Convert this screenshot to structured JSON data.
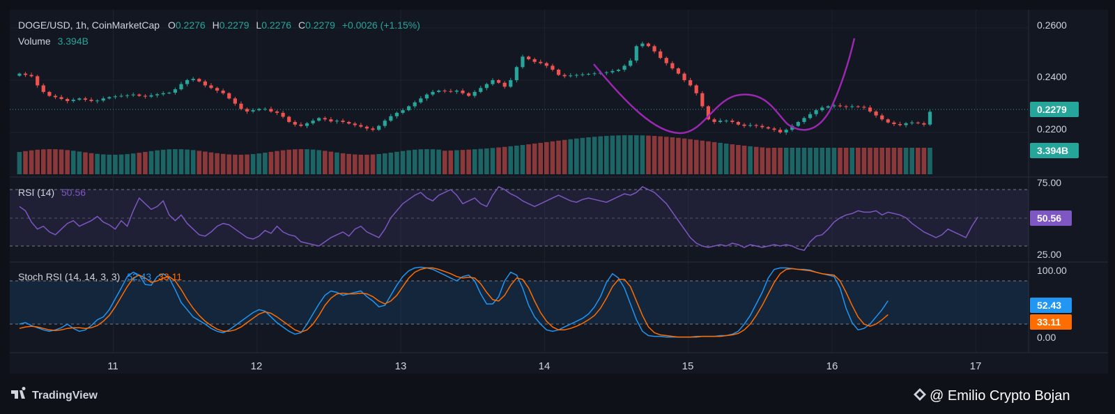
{
  "header": {
    "symbol_line": "DOGE/USD, 1h, CoinMarketCap",
    "o_label": "O",
    "o_value": "0.2276",
    "h_label": "H",
    "h_value": "0.2279",
    "l_label": "L",
    "l_value": "0.2276",
    "c_label": "C",
    "c_value": "0.2279",
    "change": "+0.0026 (+1.15%)",
    "volume_label": "Volume",
    "volume_value": "3.394B"
  },
  "badges": {
    "price": "0.2279",
    "volume": "3.394B",
    "rsi": "50.56",
    "stoch_k": "52.43",
    "stoch_d": "33.11"
  },
  "rsi_pane": {
    "label": "RSI (14)",
    "value": "50.56",
    "axis": [
      "75.00",
      "25.00"
    ]
  },
  "stoch_pane": {
    "label": "Stoch RSI (14, 14, 3, 3)",
    "k": "52.43",
    "d": "33.11",
    "axis": [
      "100.00",
      "0.00"
    ]
  },
  "price_axis": [
    "0.2600",
    "0.2400",
    "0.2200"
  ],
  "time_axis": [
    "11",
    "12",
    "13",
    "14",
    "15",
    "16",
    "17"
  ],
  "footer": {
    "brand": "TradingView",
    "watermark": "@ Emilio Crypto Bojan"
  },
  "colors": {
    "bull": "#26a69a",
    "bear": "#ef5350",
    "rsi": "#7e57c2",
    "stoch_k": "#2196f3",
    "stoch_d": "#ff6d00",
    "pattern": "#9c27b0",
    "background": "#131722"
  },
  "chart_data": [
    {
      "type": "candlestick",
      "title": "DOGE/USD, 1h, CoinMarketCap",
      "x_start_day": 10.35,
      "x_step_hours": 1,
      "ylim": [
        0.214,
        0.262
      ],
      "series": [
        {
          "name": "DOGE/USD",
          "close_approx": [
            0.2425,
            0.242,
            0.2415,
            0.238,
            0.2355,
            0.234,
            0.2335,
            0.2328,
            0.232,
            0.2325,
            0.233,
            0.2325,
            0.232,
            0.2322,
            0.233,
            0.2335,
            0.2338,
            0.234,
            0.2342,
            0.2345,
            0.234,
            0.2337,
            0.2342,
            0.2346,
            0.235,
            0.2352,
            0.2365,
            0.2385,
            0.24,
            0.2405,
            0.2395,
            0.238,
            0.237,
            0.236,
            0.235,
            0.233,
            0.231,
            0.229,
            0.228,
            0.2285,
            0.229,
            0.229,
            0.228,
            0.2275,
            0.226,
            0.224,
            0.223,
            0.2225,
            0.2235,
            0.2245,
            0.2255,
            0.225,
            0.2242,
            0.2245,
            0.224,
            0.2234,
            0.2228,
            0.2222,
            0.2215,
            0.221,
            0.2225,
            0.2245,
            0.2262,
            0.2275,
            0.2285,
            0.23,
            0.2315,
            0.233,
            0.2345,
            0.2355,
            0.236,
            0.2358,
            0.2356,
            0.236,
            0.235,
            0.234,
            0.2355,
            0.237,
            0.2385,
            0.24,
            0.239,
            0.2375,
            0.24,
            0.245,
            0.249,
            0.248,
            0.247,
            0.2465,
            0.2455,
            0.244,
            0.242,
            0.2415,
            0.2418,
            0.242,
            0.2422,
            0.2424,
            0.2426,
            0.2428,
            0.243,
            0.2435,
            0.244,
            0.2455,
            0.2475,
            0.253,
            0.254,
            0.253,
            0.251,
            0.2485,
            0.2465,
            0.2445,
            0.2425,
            0.24,
            0.238,
            0.235,
            0.23,
            0.225,
            0.224,
            0.2245,
            0.2245,
            0.224,
            0.223,
            0.2225,
            0.2228,
            0.2225,
            0.222,
            0.2215,
            0.221,
            0.22,
            0.221,
            0.2225,
            0.224,
            0.2255,
            0.227,
            0.2285,
            0.2295,
            0.23,
            0.2303,
            0.23,
            0.2298,
            0.23,
            0.2298,
            0.2295,
            0.228,
            0.2265,
            0.225,
            0.2238,
            0.2232,
            0.2228,
            0.2235,
            0.2238,
            0.2235,
            0.223,
            0.2279
          ]
        }
      ],
      "annotations": [
        "0.2279",
        "cup and handle curve (drawn)"
      ]
    },
    {
      "type": "bar",
      "title": "Volume",
      "latest": "3.394B",
      "series": [
        {
          "name": "Volume",
          "values_relative": [
            0.9,
            0.92,
            0.94,
            0.95,
            0.96,
            0.97,
            0.98,
            0.98,
            0.99,
            1.0
          ]
        }
      ]
    },
    {
      "type": "line",
      "title": "RSI (14)",
      "ylim": [
        20,
        80
      ],
      "bands": [
        30,
        50,
        70
      ],
      "series": [
        {
          "name": "RSI",
          "values": [
            58,
            55,
            47,
            42,
            44,
            40,
            38,
            42,
            46,
            48,
            44,
            46,
            48,
            51,
            47,
            45,
            42,
            48,
            44,
            55,
            64,
            60,
            56,
            58,
            62,
            52,
            48,
            52,
            46,
            42,
            38,
            37,
            40,
            44,
            46,
            45,
            42,
            39,
            36,
            35,
            37,
            41,
            39,
            44,
            40,
            38,
            37,
            33,
            32,
            31,
            30,
            33,
            36,
            38,
            40,
            37,
            42,
            44,
            40,
            38,
            36,
            42,
            50,
            55,
            60,
            63,
            66,
            68,
            64,
            62,
            66,
            68,
            70,
            66,
            60,
            62,
            64,
            60,
            58,
            66,
            72,
            70,
            67,
            65,
            62,
            60,
            58,
            60,
            62,
            64,
            66,
            64,
            62,
            61,
            63,
            64,
            63,
            62,
            61,
            63,
            65,
            67,
            66,
            68,
            72,
            70,
            68,
            64,
            60,
            54,
            48,
            42,
            36,
            32,
            30,
            29,
            30,
            31,
            30,
            32,
            31,
            29,
            31,
            30,
            29,
            30,
            31,
            30,
            31,
            30,
            28,
            27,
            33,
            37,
            38,
            42,
            47,
            50,
            52,
            53,
            55,
            54,
            54,
            55,
            52,
            54,
            53,
            52,
            50,
            46,
            43,
            40,
            38,
            36,
            38,
            42,
            40,
            38,
            36,
            44,
            50.56
          ]
        }
      ]
    },
    {
      "type": "line",
      "title": "Stoch RSI (14, 14, 3, 3)",
      "ylim": [
        0,
        100
      ],
      "bands": [
        20,
        80
      ],
      "series": [
        {
          "name": "K",
          "values": [
            20,
            22,
            18,
            15,
            12,
            10,
            12,
            15,
            20,
            14,
            10,
            12,
            18,
            26,
            30,
            40,
            55,
            70,
            86,
            92,
            88,
            75,
            74,
            86,
            90,
            84,
            68,
            50,
            40,
            30,
            25,
            20,
            14,
            10,
            8,
            12,
            18,
            24,
            30,
            36,
            40,
            38,
            30,
            22,
            16,
            10,
            6,
            8,
            20,
            34,
            48,
            60,
            66,
            64,
            60,
            62,
            64,
            66,
            58,
            52,
            44,
            46,
            60,
            74,
            86,
            94,
            98,
            99,
            98,
            96,
            92,
            88,
            84,
            80,
            86,
            88,
            80,
            62,
            48,
            48,
            58,
            80,
            92,
            88,
            70,
            46,
            30,
            20,
            12,
            10,
            12,
            16,
            20,
            24,
            28,
            34,
            44,
            58,
            78,
            90,
            84,
            70,
            48,
            26,
            10,
            4,
            3,
            3,
            2,
            2,
            2,
            2,
            2,
            3,
            3,
            3,
            3,
            4,
            4,
            6,
            10,
            20,
            32,
            48,
            64,
            84,
            96,
            98,
            98,
            97,
            96,
            96,
            95,
            92,
            90,
            88,
            86,
            70,
            42,
            22,
            12,
            14,
            20,
            30,
            40,
            52.43
          ]
        },
        {
          "name": "D",
          "values": [
            14,
            16,
            17,
            16,
            14,
            12,
            11,
            12,
            14,
            15,
            15,
            14,
            15,
            18,
            24,
            32,
            44,
            58,
            72,
            84,
            88,
            84,
            78,
            80,
            84,
            86,
            80,
            68,
            54,
            42,
            32,
            24,
            18,
            13,
            10,
            10,
            12,
            16,
            22,
            28,
            34,
            37,
            35,
            30,
            24,
            18,
            12,
            9,
            12,
            20,
            32,
            46,
            56,
            62,
            63,
            62,
            62,
            63,
            62,
            58,
            52,
            48,
            52,
            60,
            72,
            84,
            92,
            96,
            98,
            98,
            96,
            93,
            90,
            86,
            84,
            85,
            84,
            76,
            64,
            54,
            52,
            60,
            74,
            84,
            82,
            70,
            52,
            36,
            24,
            16,
            12,
            12,
            14,
            17,
            21,
            26,
            32,
            42,
            56,
            72,
            82,
            82,
            72,
            52,
            32,
            16,
            8,
            5,
            4,
            3,
            2,
            2,
            2,
            2,
            3,
            3,
            3,
            3,
            4,
            5,
            7,
            12,
            20,
            32,
            46,
            62,
            78,
            90,
            96,
            97,
            96,
            95,
            94,
            92,
            90,
            89,
            88,
            80,
            64,
            46,
            30,
            20,
            17,
            20,
            26,
            33.11
          ]
        }
      ]
    }
  ]
}
